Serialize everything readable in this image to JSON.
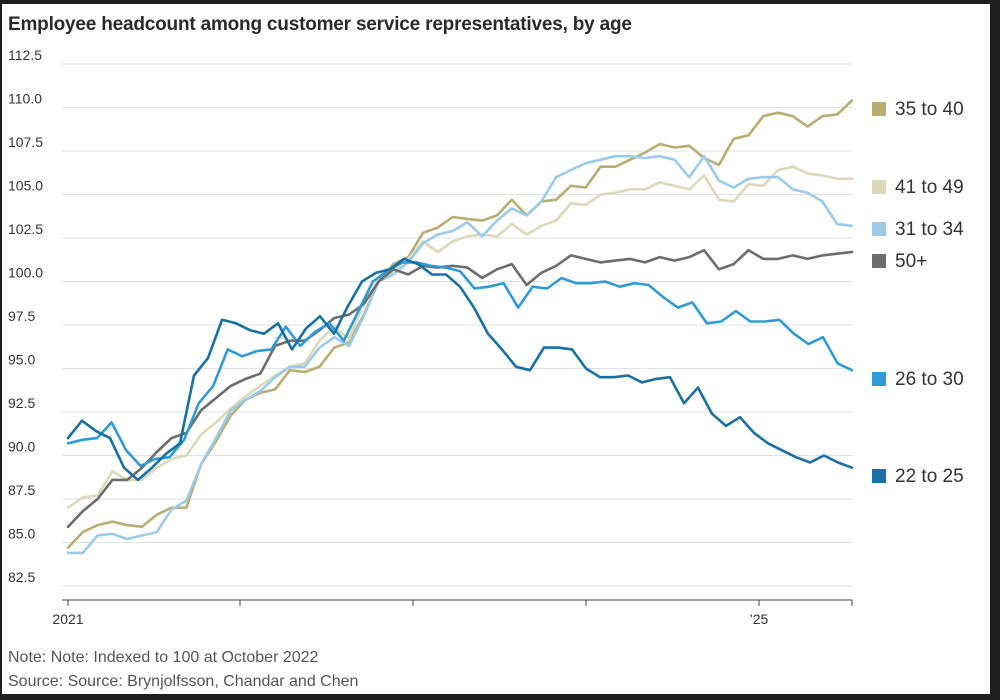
{
  "chart_data": {
    "type": "line",
    "title": "Employee headcount among customer service representatives, by age",
    "xlabel": "",
    "ylabel": "",
    "ylim": [
      82.5,
      112.5
    ],
    "y_ticks": [
      "112.5",
      "110.0",
      "107.5",
      "105.0",
      "102.5",
      "100.0",
      "97.5",
      "95.0",
      "92.5",
      "90.0",
      "87.5",
      "85.0",
      "82.5"
    ],
    "x_tick_labels": [
      "2021",
      "",
      "",
      "",
      "",
      "’25",
      ""
    ],
    "grid": true,
    "legend_position": "right",
    "x_start_month_index": 0,
    "series": [
      {
        "name": "35 to 40",
        "color": "#b8ae73",
        "values": [
          84.7,
          85.6,
          86.0,
          86.2,
          86.0,
          85.9,
          86.6,
          87.0,
          87.0,
          89.5,
          90.8,
          92.3,
          93.2,
          93.6,
          93.8,
          94.9,
          94.8,
          95.1,
          96.2,
          96.5,
          98.1,
          100.0,
          101.0,
          101.4,
          102.8,
          103.1,
          103.7,
          103.6,
          103.5,
          103.8,
          104.7,
          103.8,
          104.6,
          104.7,
          105.5,
          105.4,
          106.6,
          106.6,
          107.0,
          107.4,
          107.9,
          107.7,
          107.8,
          107.1,
          106.7,
          108.2,
          108.4,
          109.5,
          109.7,
          109.5,
          108.9,
          109.5,
          109.6,
          110.4
        ]
      },
      {
        "name": "41 to 49",
        "color": "#dcd9ba",
        "values": [
          87.0,
          87.6,
          87.7,
          89.1,
          88.6,
          88.6,
          89.3,
          89.8,
          90.0,
          91.2,
          91.9,
          92.7,
          93.4,
          94.0,
          94.6,
          95.1,
          95.3,
          96.6,
          97.4,
          96.7,
          98.8,
          100.0,
          100.6,
          101.3,
          102.3,
          101.7,
          102.3,
          102.6,
          102.7,
          102.6,
          103.3,
          102.7,
          103.2,
          103.5,
          104.5,
          104.4,
          105.0,
          105.1,
          105.3,
          105.3,
          105.7,
          105.5,
          105.3,
          106.1,
          104.7,
          104.6,
          105.6,
          105.5,
          106.4,
          106.6,
          106.2,
          106.1,
          105.9,
          105.9
        ]
      },
      {
        "name": "31 to 34",
        "color": "#9ccbea",
        "values": [
          84.4,
          84.4,
          85.4,
          85.5,
          85.2,
          85.4,
          85.6,
          86.9,
          87.4,
          89.5,
          91.0,
          92.6,
          93.2,
          93.7,
          94.5,
          95.1,
          95.1,
          96.2,
          96.8,
          96.3,
          98.0,
          100.0,
          100.4,
          101.1,
          102.2,
          102.7,
          102.9,
          103.4,
          102.6,
          103.5,
          104.2,
          103.8,
          104.6,
          106.0,
          106.4,
          106.8,
          107.0,
          107.2,
          107.2,
          107.1,
          107.2,
          107.0,
          106.0,
          107.2,
          105.8,
          105.4,
          105.9,
          106.0,
          106.0,
          105.3,
          105.1,
          104.6,
          103.3,
          103.2
        ]
      },
      {
        "name": "50+",
        "color": "#6d6d6d",
        "values": [
          85.9,
          86.8,
          87.5,
          88.6,
          88.6,
          89.3,
          90.2,
          91.0,
          91.3,
          92.6,
          93.3,
          94.0,
          94.4,
          94.7,
          96.3,
          96.6,
          96.6,
          97.2,
          97.9,
          98.1,
          98.7,
          100.0,
          100.7,
          100.4,
          100.9,
          100.8,
          100.9,
          100.8,
          100.2,
          100.7,
          101.0,
          99.8,
          100.5,
          100.9,
          101.5,
          101.3,
          101.1,
          101.2,
          101.3,
          101.1,
          101.4,
          101.2,
          101.4,
          101.8,
          100.7,
          101.0,
          101.8,
          101.3,
          101.3,
          101.5,
          101.3,
          101.5,
          101.6,
          101.7
        ]
      },
      {
        "name": "26 to 30",
        "color": "#2e9bd6",
        "values": [
          90.7,
          90.9,
          91.0,
          91.9,
          90.3,
          89.4,
          89.8,
          89.9,
          90.9,
          93.0,
          94.0,
          96.1,
          95.7,
          96.0,
          96.1,
          97.4,
          96.3,
          97.1,
          97.6,
          96.6,
          98.3,
          100.0,
          100.6,
          101.1,
          101.1,
          100.9,
          100.8,
          100.6,
          99.6,
          99.7,
          99.9,
          98.5,
          99.7,
          99.6,
          100.2,
          99.9,
          99.9,
          100.0,
          99.7,
          99.9,
          99.8,
          99.1,
          98.5,
          98.8,
          97.6,
          97.7,
          98.3,
          97.7,
          97.7,
          97.8,
          97.0,
          96.4,
          96.8,
          95.3,
          94.9
        ]
      },
      {
        "name": "22 to 25",
        "color": "#1a6fa3",
        "values": [
          91.0,
          92.0,
          91.4,
          91.0,
          89.3,
          88.6,
          89.3,
          90.1,
          90.7,
          94.6,
          95.6,
          97.8,
          97.6,
          97.2,
          97.0,
          97.6,
          96.1,
          97.3,
          98.0,
          97.0,
          98.6,
          100.0,
          100.5,
          100.7,
          101.3,
          101.0,
          100.4,
          100.4,
          99.7,
          98.5,
          97.0,
          96.1,
          95.1,
          94.9,
          96.2,
          96.2,
          96.1,
          95.0,
          94.5,
          94.5,
          94.6,
          94.2,
          94.4,
          94.5,
          93.0,
          93.9,
          92.4,
          91.7,
          92.2,
          91.3,
          90.7,
          90.3,
          89.9,
          89.6,
          90.0,
          89.6,
          89.3
        ]
      }
    ],
    "legend_offsets_px_note": "legend positions computed in script"
  },
  "footer": {
    "note": "Note: Note: Indexed to 100 at October 2022",
    "source": "Source: Source: Brynjolfsson, Chandar and Chen"
  }
}
